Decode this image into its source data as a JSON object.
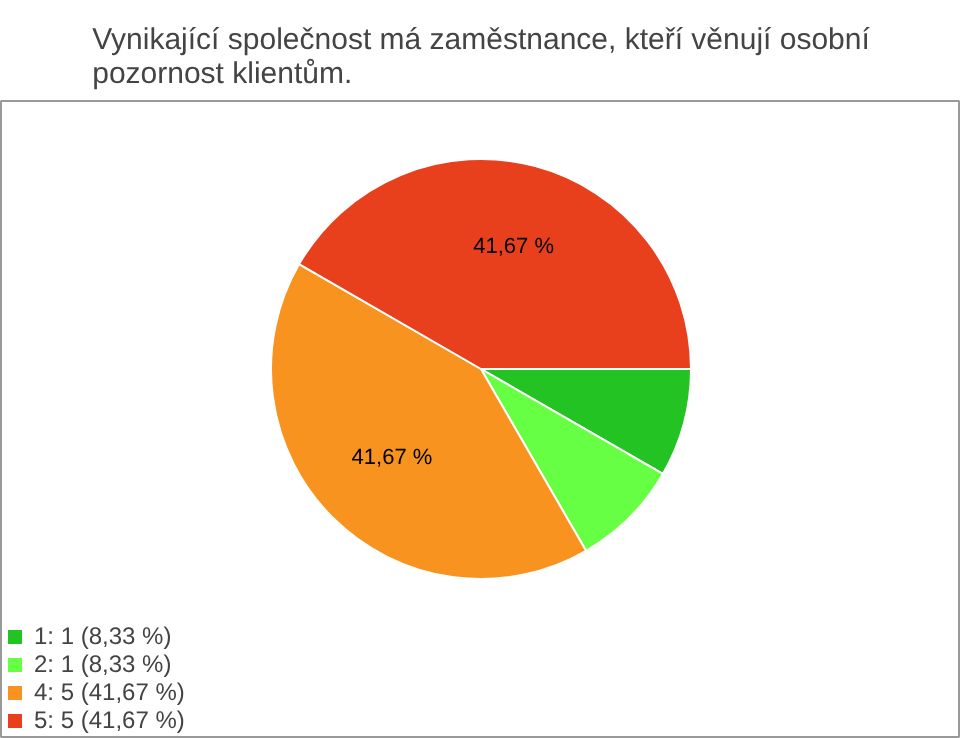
{
  "chart_data": {
    "type": "pie",
    "title": "Vynikající společnost má zaměstnance, kteří věnují osobní pozornost klientům.",
    "categories": [
      "1: 1 (8,33 %)",
      "2: 1 (8,33 %)",
      "4: 5 (41,67 %)",
      "5: 5 (41,67 %)"
    ],
    "values": [
      8.33,
      8.33,
      41.67,
      41.67
    ],
    "colors": [
      "#22c322",
      "#66ff44",
      "#f7931e",
      "#e8401c"
    ],
    "value_labels": [
      null,
      null,
      "41,67 %",
      "41,67 %"
    ],
    "legend": "bottom left"
  }
}
